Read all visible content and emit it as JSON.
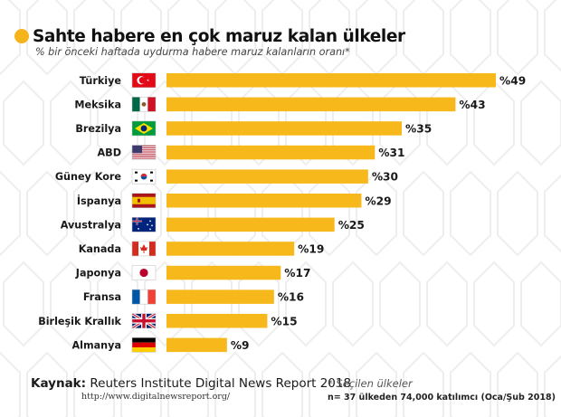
{
  "header": {
    "title": "Sahte habere en çok maruz kalan ülkeler",
    "subtitle": "% bir önceki haftada uydurma habere maruz kalanların oranı*"
  },
  "colors": {
    "bar": "#f7b81b",
    "accent": "#f5b41c"
  },
  "chart_data": {
    "type": "bar",
    "orientation": "horizontal",
    "title": "Sahte habere en çok maruz kalan ülkeler",
    "subtitle": "% bir önceki haftada uydurma habere maruz kalanların oranı*",
    "value_prefix": "%",
    "xlim": [
      0,
      49
    ],
    "categories": [
      "Türkiye",
      "Meksika",
      "Brezilya",
      "ABD",
      "Güney Kore",
      "İspanya",
      "Avustralya",
      "Kanada",
      "Japonya",
      "Fransa",
      "Birleşik Krallık",
      "Almanya"
    ],
    "flags": [
      "turkey-flag-icon",
      "mexico-flag-icon",
      "brazil-flag-icon",
      "usa-flag-icon",
      "south-korea-flag-icon",
      "spain-flag-icon",
      "australia-flag-icon",
      "canada-flag-icon",
      "japan-flag-icon",
      "france-flag-icon",
      "uk-flag-icon",
      "germany-flag-icon"
    ],
    "values": [
      49,
      43,
      35,
      31,
      30,
      29,
      25,
      19,
      17,
      16,
      15,
      9
    ],
    "data_labels": [
      "%49",
      "%43",
      "%35",
      "%31",
      "%30",
      "%29",
      "%25",
      "%19",
      "%17",
      "%16",
      "%15",
      "%9"
    ]
  },
  "footer": {
    "source_label": "Kaynak:",
    "source_text": "Reuters Institute Digital News Report 2018",
    "url": "http://www.digitalnewsreport.org/",
    "note": "* Seçilen ülkeler",
    "sample": "n= 37 ülkeden 74,000 katılımcı (Oca/Şub 2018)"
  }
}
